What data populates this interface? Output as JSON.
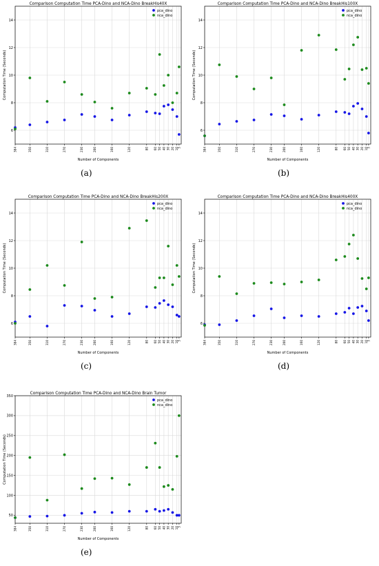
{
  "colors": {
    "pca": "#1515e6",
    "nca": "#1c8a1c",
    "grid": "#d9d9d9",
    "axis": "#000000"
  },
  "chart_data": [
    {
      "id": "a",
      "type": "scatter",
      "caption": "(a)",
      "title": "Comparison Computation Time PCA-Dino and NCA-Dino BreakHis40X",
      "xlabel": "Number of Components",
      "ylabel": "Computation Time (Seconds)",
      "xlim": [
        384,
        0
      ],
      "ylim": [
        5,
        15
      ],
      "yticks": [
        6,
        8,
        10,
        12,
        14
      ],
      "x": [
        384,
        350,
        310,
        270,
        230,
        200,
        160,
        120,
        80,
        60,
        50,
        40,
        30,
        20,
        10,
        5
      ],
      "xtick_labels": [
        "384",
        "350",
        "310",
        "270",
        "230",
        "200",
        "160",
        "120",
        "80",
        "60",
        "50",
        "40",
        "30",
        "20",
        "10",
        "5"
      ],
      "grid": true,
      "legend": "top-right",
      "series": [
        {
          "name": "pca_dino",
          "values": [
            6.2,
            6.4,
            6.6,
            6.75,
            7.15,
            7.0,
            6.75,
            7.1,
            7.35,
            7.25,
            7.2,
            7.75,
            7.85,
            7.5,
            7.0,
            5.7
          ]
        },
        {
          "name": "nca_dino",
          "values": [
            6.1,
            9.8,
            8.1,
            9.5,
            8.6,
            8.05,
            7.6,
            8.7,
            9.05,
            8.6,
            11.5,
            9.25,
            10.0,
            8.0,
            8.7,
            10.6
          ]
        }
      ]
    },
    {
      "id": "b",
      "type": "scatter",
      "caption": "(b)",
      "title": "Comparison Computation Time PCA-Dino and NCA-Dino BreakHis100X",
      "xlabel": "Number of Components",
      "ylabel": "Computation Time (Seconds)",
      "xlim": [
        384,
        0
      ],
      "ylim": [
        5,
        15
      ],
      "yticks": [
        6,
        8,
        10,
        12,
        14
      ],
      "x": [
        384,
        350,
        310,
        270,
        230,
        200,
        160,
        120,
        80,
        60,
        50,
        40,
        30,
        20,
        10,
        5
      ],
      "xtick_labels": [
        "384",
        "350",
        "310",
        "270",
        "230",
        "200",
        "160",
        "120",
        "80",
        "60",
        "50",
        "40",
        "30",
        "20",
        "10",
        "5"
      ],
      "grid": true,
      "legend": "top-right",
      "series": [
        {
          "name": "pca_dino",
          "values": [
            5.6,
            6.45,
            6.65,
            6.75,
            7.15,
            7.05,
            6.8,
            7.1,
            7.35,
            7.3,
            7.2,
            7.75,
            7.95,
            7.55,
            7.0,
            5.8
          ]
        },
        {
          "name": "nca_dino",
          "values": [
            5.6,
            10.75,
            9.9,
            9.0,
            9.8,
            7.85,
            11.8,
            12.9,
            11.85,
            9.7,
            10.45,
            12.2,
            12.75,
            10.4,
            10.5,
            9.4
          ]
        }
      ]
    },
    {
      "id": "c",
      "type": "scatter",
      "caption": "(c)",
      "title": "Comparison Computation Time PCA-Dino and NCA-Dino BreakHis200X",
      "xlabel": "Number of Components",
      "ylabel": "Computation Time (Seconds)",
      "xlim": [
        384,
        0
      ],
      "ylim": [
        5,
        15
      ],
      "yticks": [
        6,
        8,
        10,
        12,
        14
      ],
      "x": [
        384,
        350,
        310,
        270,
        230,
        200,
        160,
        120,
        80,
        60,
        50,
        40,
        30,
        20,
        10,
        5
      ],
      "xtick_labels": [
        "384",
        "350",
        "310",
        "270",
        "230",
        "200",
        "160",
        "120",
        "80",
        "60",
        "50",
        "40",
        "30",
        "20",
        "10",
        "5"
      ],
      "grid": true,
      "legend": "top-right",
      "series": [
        {
          "name": "pca_dino",
          "values": [
            6.1,
            6.5,
            5.8,
            7.3,
            7.25,
            6.95,
            6.5,
            6.7,
            7.2,
            7.15,
            7.45,
            7.65,
            7.35,
            7.2,
            6.6,
            6.5
          ]
        },
        {
          "name": "nca_dino",
          "values": [
            6.0,
            8.45,
            10.2,
            8.75,
            11.9,
            7.8,
            7.9,
            12.9,
            13.45,
            8.6,
            9.3,
            9.3,
            11.6,
            8.8,
            10.2,
            9.4
          ]
        }
      ]
    },
    {
      "id": "d",
      "type": "scatter",
      "caption": "(d)",
      "title": "Comparison Computation Time PCA-Dino and NCA-Dino BreakHis400X",
      "xlabel": "Number of Components",
      "ylabel": "Computation Time (Seconds)",
      "xlim": [
        384,
        0
      ],
      "ylim": [
        5,
        15
      ],
      "yticks": [
        6,
        8,
        10,
        12,
        14
      ],
      "x": [
        384,
        350,
        310,
        270,
        230,
        200,
        160,
        120,
        80,
        60,
        50,
        40,
        30,
        20,
        10,
        5
      ],
      "xtick_labels": [
        "384",
        "350",
        "310",
        "270",
        "230",
        "200",
        "160",
        "120",
        "80",
        "60",
        "50",
        "40",
        "30",
        "20",
        "10",
        "5"
      ],
      "grid": true,
      "legend": "top-right",
      "series": [
        {
          "name": "pca_dino",
          "values": [
            5.9,
            5.9,
            6.2,
            6.55,
            7.05,
            6.4,
            6.55,
            6.5,
            6.7,
            6.8,
            7.1,
            6.7,
            7.15,
            7.25,
            6.9,
            6.2
          ]
        },
        {
          "name": "nca_dino",
          "values": [
            5.85,
            9.4,
            8.15,
            8.9,
            8.95,
            8.85,
            9.0,
            9.15,
            10.6,
            10.85,
            11.75,
            12.4,
            10.7,
            9.25,
            8.5,
            9.3
          ]
        }
      ]
    },
    {
      "id": "e",
      "type": "scatter",
      "caption": "(e)",
      "title": "Comparison Computation Time PCA-Dino and NCA-Dino Brain Tumor",
      "xlabel": "Number of Components",
      "ylabel": "Computation Time (Seconds)",
      "xlim": [
        384,
        0
      ],
      "ylim": [
        30,
        350
      ],
      "yticks": [
        50,
        100,
        150,
        200,
        250,
        300,
        350
      ],
      "x": [
        384,
        350,
        310,
        270,
        230,
        200,
        160,
        120,
        80,
        60,
        50,
        40,
        30,
        20,
        10,
        5
      ],
      "xtick_labels": [
        "384",
        "350",
        "310",
        "270",
        "230",
        "200",
        "160",
        "120",
        "80",
        "60",
        "50",
        "40",
        "30",
        "20",
        "10",
        "5"
      ],
      "grid": true,
      "legend": "top-right",
      "series": [
        {
          "name": "pca_dino",
          "values": [
            44,
            47,
            48,
            50,
            55,
            58,
            57,
            60,
            60,
            65,
            60,
            62,
            65,
            57,
            50,
            50
          ]
        },
        {
          "name": "nca_dino",
          "values": [
            44,
            195,
            88,
            202,
            117,
            142,
            143,
            127,
            170,
            231,
            170,
            122,
            125,
            115,
            198,
            300
          ]
        }
      ]
    }
  ]
}
